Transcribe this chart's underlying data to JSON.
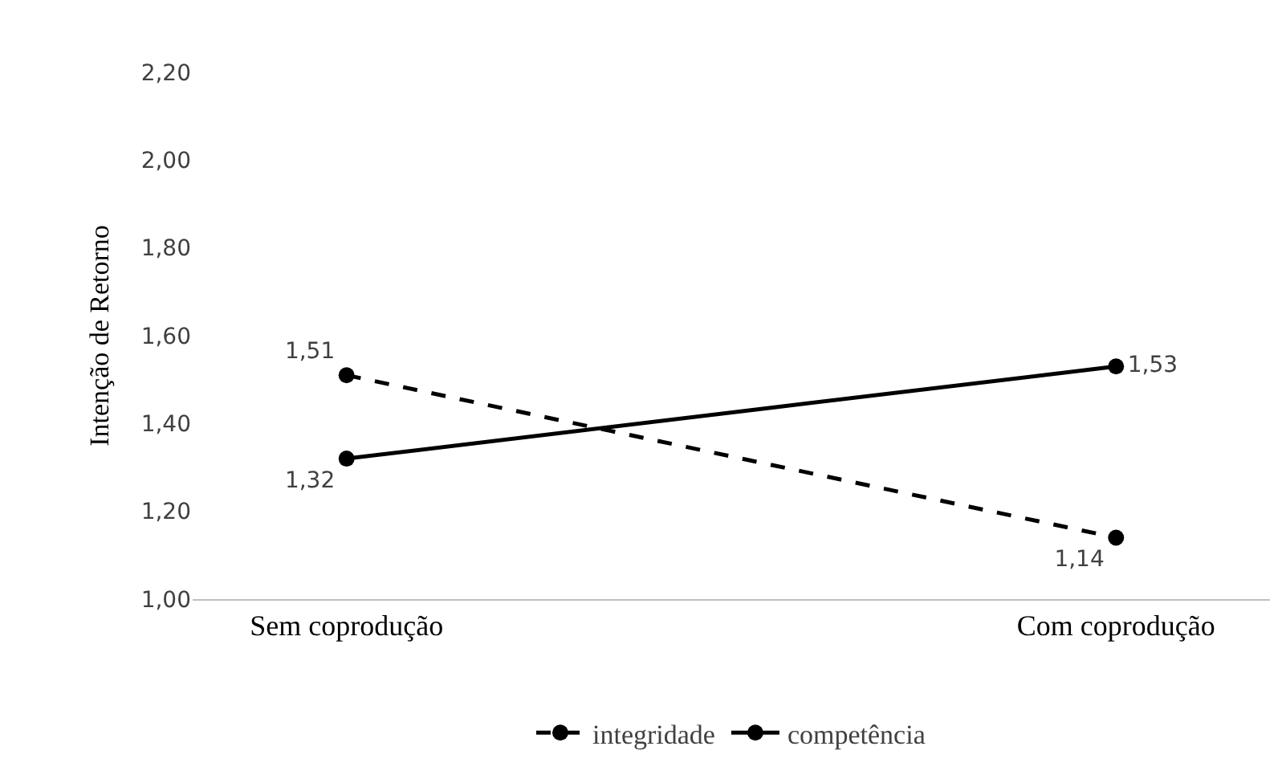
{
  "chart_data": {
    "type": "line",
    "ylabel": "Intenção de Retorno",
    "categories": [
      "Sem coprodução",
      "Com coprodução"
    ],
    "series": [
      {
        "name": "integridade",
        "color": "#000000",
        "values": [
          1.51,
          1.14
        ],
        "line_style": "dashed",
        "value_labels": [
          "1,51",
          "1,14"
        ]
      },
      {
        "name": "competência",
        "color": "#000000",
        "values": [
          1.32,
          1.53
        ],
        "line_style": "solid",
        "value_labels": [
          "1,32",
          "1,53"
        ]
      }
    ],
    "ylim": [
      1,
      2.2
    ],
    "yticks": [
      {
        "value": 1,
        "label": "1,00"
      },
      {
        "value": 1.2,
        "label": "1,20"
      },
      {
        "value": 1.4,
        "label": "1,40"
      },
      {
        "value": 1.6,
        "label": "1,60"
      },
      {
        "value": 1.8,
        "label": "1,80"
      },
      {
        "value": 2,
        "label": "2,00"
      },
      {
        "value": 2.2,
        "label": "2,20"
      }
    ],
    "marker": "circle",
    "grid": false,
    "legend": "bottom"
  }
}
